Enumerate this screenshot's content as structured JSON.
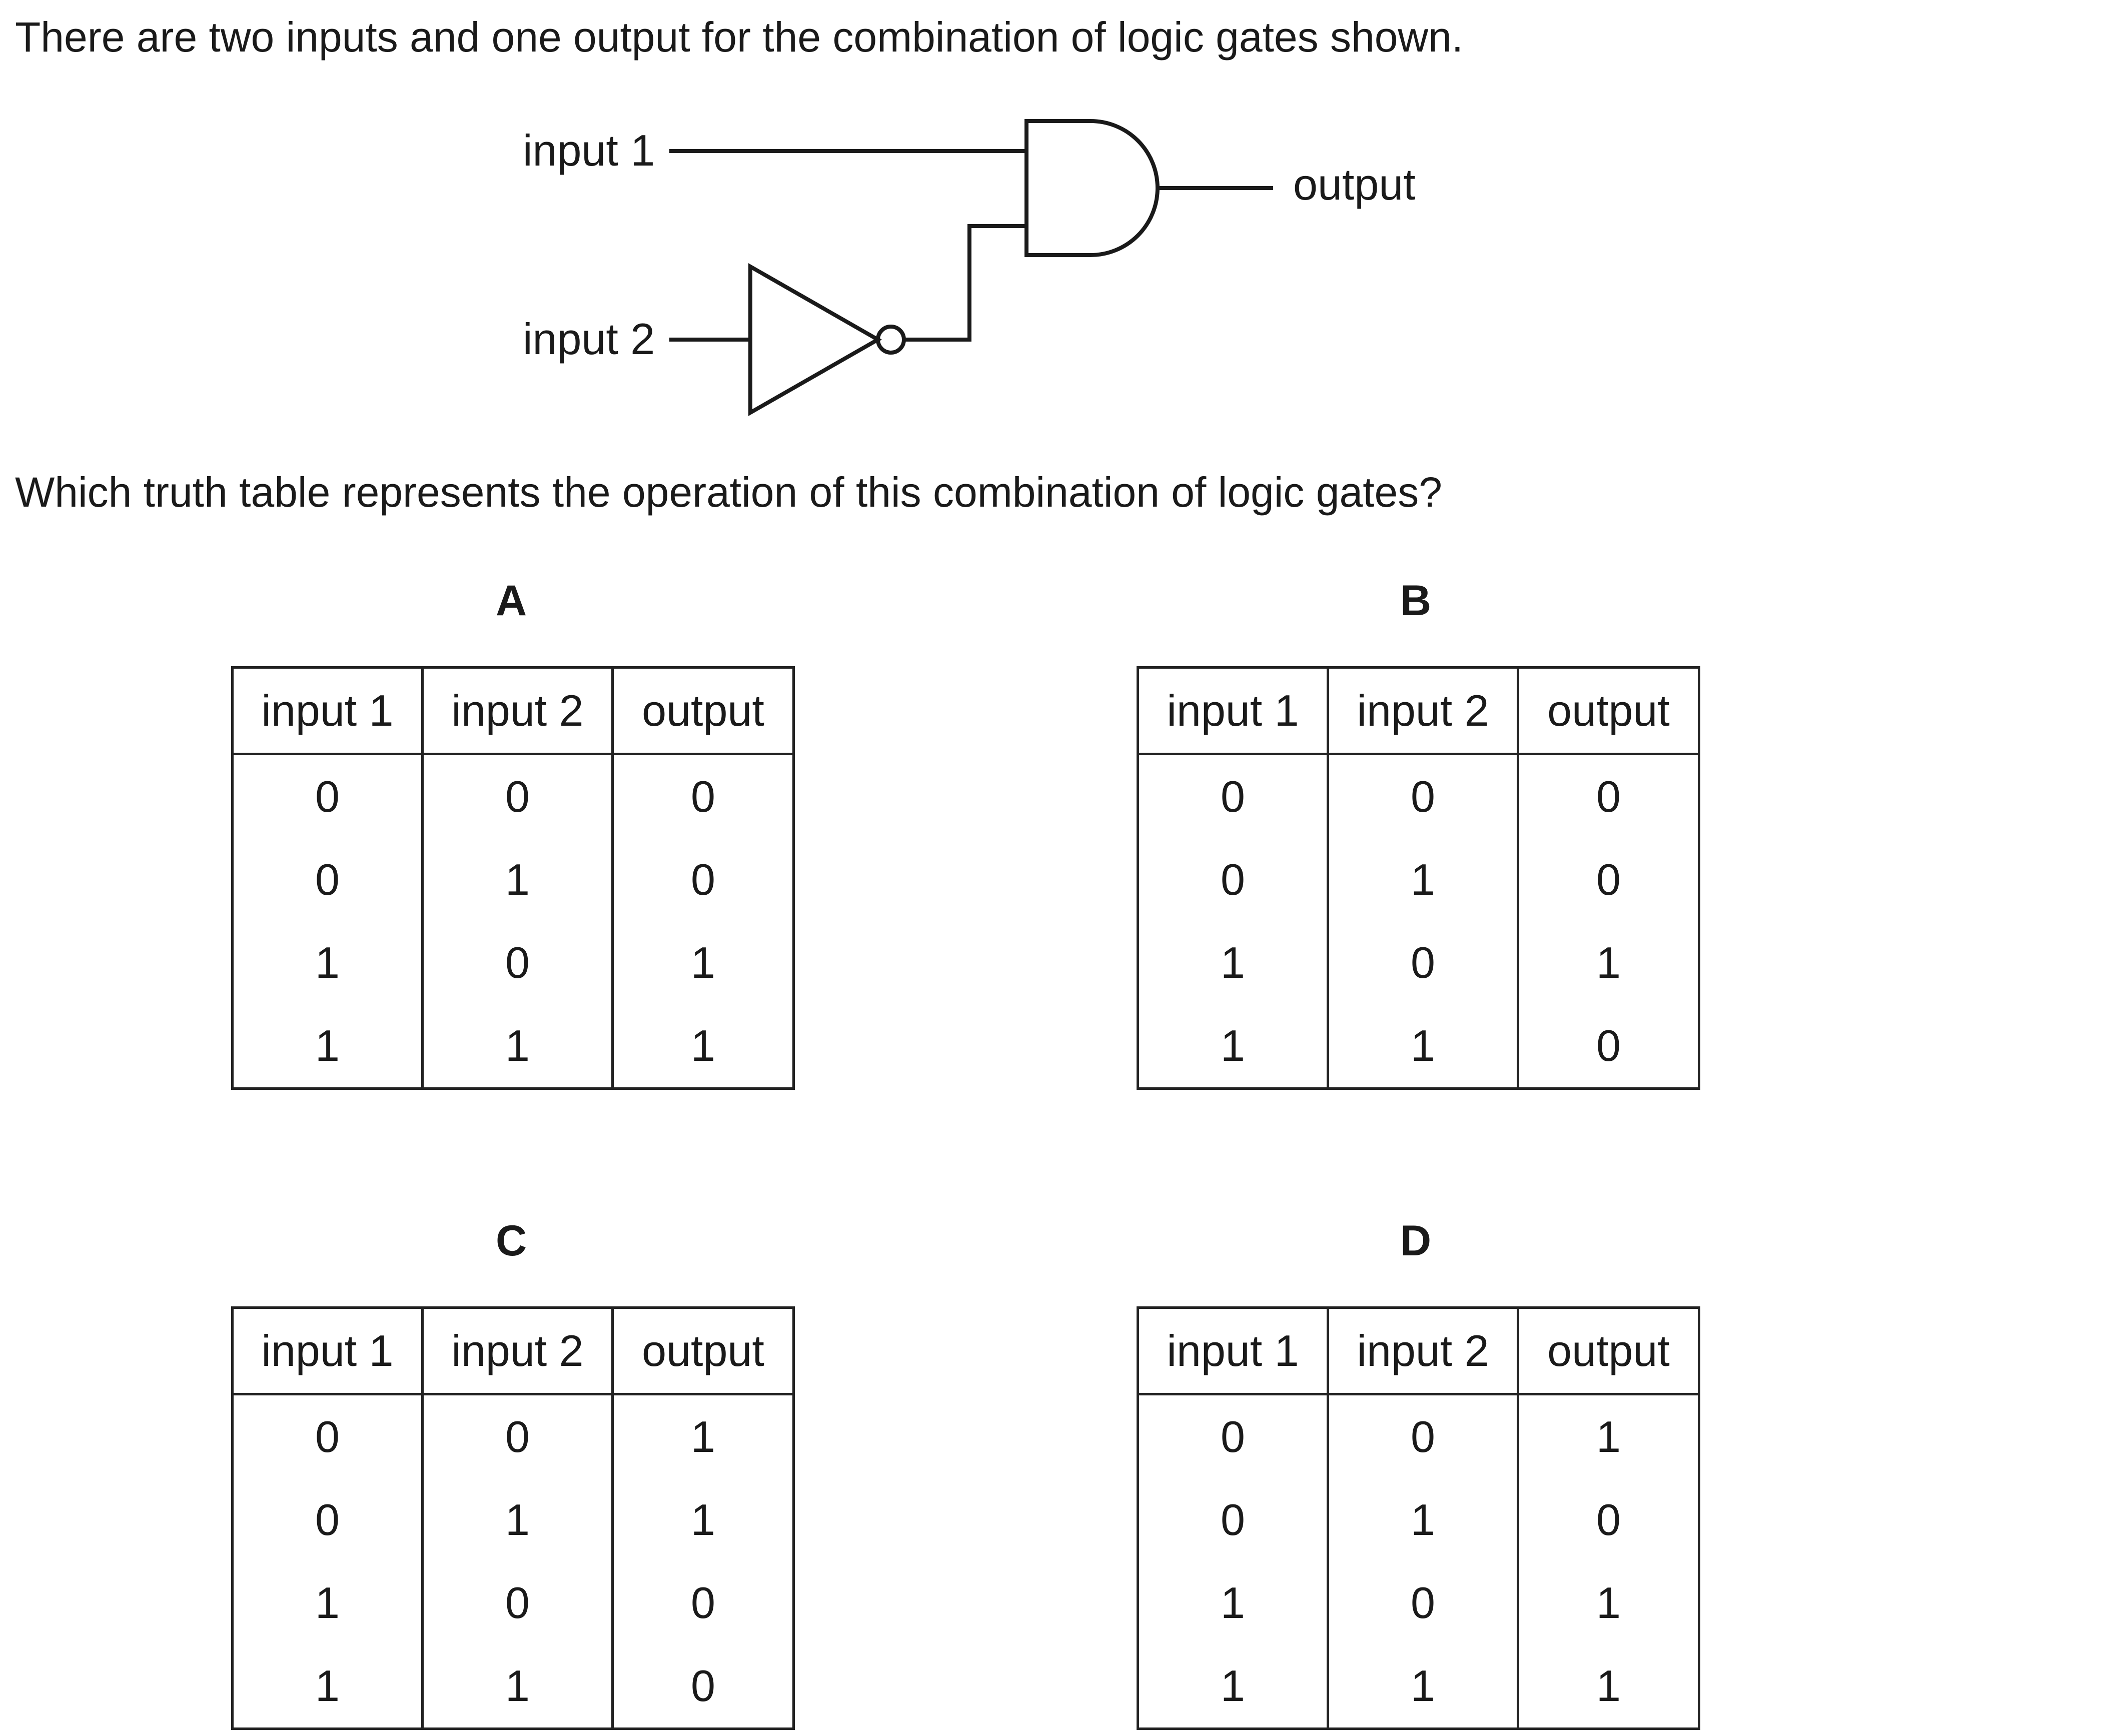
{
  "question": {
    "stem_1": "There are two inputs and one output for the combination of logic gates shown.",
    "stem_2": "Which truth table represents the operation of this combination of logic gates?"
  },
  "circuit": {
    "input_1_label": "input 1",
    "input_2_label": "input 2",
    "output_label": "output",
    "gates": [
      "NOT gate on input 2",
      "AND gate"
    ]
  },
  "options": [
    {
      "letter": "A",
      "headers": [
        "input 1",
        "input 2",
        "output"
      ],
      "rows": [
        [
          "0",
          "0",
          "0"
        ],
        [
          "0",
          "1",
          "0"
        ],
        [
          "1",
          "0",
          "1"
        ],
        [
          "1",
          "1",
          "1"
        ]
      ]
    },
    {
      "letter": "B",
      "headers": [
        "input 1",
        "input 2",
        "output"
      ],
      "rows": [
        [
          "0",
          "0",
          "0"
        ],
        [
          "0",
          "1",
          "0"
        ],
        [
          "1",
          "0",
          "1"
        ],
        [
          "1",
          "1",
          "0"
        ]
      ]
    },
    {
      "letter": "C",
      "headers": [
        "input 1",
        "input 2",
        "output"
      ],
      "rows": [
        [
          "0",
          "0",
          "1"
        ],
        [
          "0",
          "1",
          "1"
        ],
        [
          "1",
          "0",
          "0"
        ],
        [
          "1",
          "1",
          "0"
        ]
      ]
    },
    {
      "letter": "D",
      "headers": [
        "input 1",
        "input 2",
        "output"
      ],
      "rows": [
        [
          "0",
          "0",
          "1"
        ],
        [
          "0",
          "1",
          "0"
        ],
        [
          "1",
          "0",
          "1"
        ],
        [
          "1",
          "1",
          "1"
        ]
      ]
    }
  ]
}
